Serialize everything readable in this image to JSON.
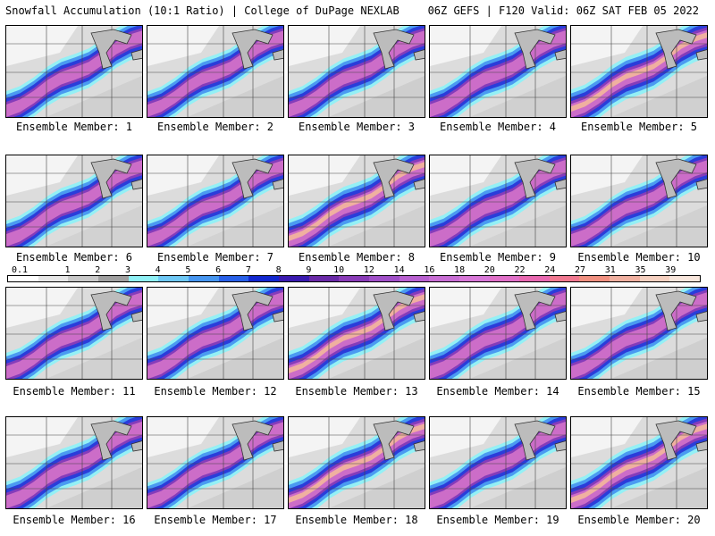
{
  "header": {
    "title_left": "Snowfall Accumulation (10:1 Ratio) | College of DuPage NEXLAB",
    "title_right": "06Z GEFS | F120 Valid: 06Z SAT FEB 05 2022"
  },
  "map_labels": [
    "Ensemble Member: 1",
    "Ensemble Member: 2",
    "Ensemble Member: 3",
    "Ensemble Member: 4",
    "Ensemble Member: 5",
    "Ensemble Member: 6",
    "Ensemble Member: 7",
    "Ensemble Member: 8",
    "Ensemble Member: 9",
    "Ensemble Member: 10",
    "Ensemble Member: 11",
    "Ensemble Member: 12",
    "Ensemble Member: 13",
    "Ensemble Member: 14",
    "Ensemble Member: 15",
    "Ensemble Member: 16",
    "Ensemble Member: 17",
    "Ensemble Member: 18",
    "Ensemble Member: 19",
    "Ensemble Member: 20"
  ],
  "colorbar": {
    "labels": [
      "0.1",
      "1",
      "2",
      "3",
      "4",
      "5",
      "6",
      "7",
      "8",
      "9",
      "10",
      "12",
      "14",
      "16",
      "18",
      "20",
      "22",
      "24",
      "27",
      "31",
      "35",
      "39"
    ],
    "colors": [
      "#ffffff",
      "#e6e6e6",
      "#c8c8c8",
      "#a0a0a0",
      "#8ff0f5",
      "#6ec8f5",
      "#4696f0",
      "#2860e8",
      "#1228d0",
      "#3a1ab0",
      "#6a2aa8",
      "#8a3cb8",
      "#a050c8",
      "#b860d0",
      "#c86ed4",
      "#d878d8",
      "#e070c8",
      "#e868b0",
      "#f07890",
      "#f09080",
      "#f0b0a0",
      "#f5d0c0",
      "#f8e6dc"
    ]
  },
  "members": [
    {
      "intensity": 0.75,
      "southern_grey": 0.4
    },
    {
      "intensity": 0.7,
      "southern_grey": 0.5
    },
    {
      "intensity": 0.75,
      "southern_grey": 0.6
    },
    {
      "intensity": 0.8,
      "southern_grey": 0.4
    },
    {
      "intensity": 0.95,
      "southern_grey": 0.4
    },
    {
      "intensity": 0.75,
      "southern_grey": 0.2
    },
    {
      "intensity": 0.7,
      "southern_grey": 0.2
    },
    {
      "intensity": 0.9,
      "southern_grey": 0.3
    },
    {
      "intensity": 0.85,
      "southern_grey": 0.2
    },
    {
      "intensity": 0.7,
      "southern_grey": 0.3
    },
    {
      "intensity": 0.75,
      "southern_grey": 0.3
    },
    {
      "intensity": 0.85,
      "southern_grey": 0.6
    },
    {
      "intensity": 0.95,
      "southern_grey": 0.5
    },
    {
      "intensity": 0.8,
      "southern_grey": 0.4
    },
    {
      "intensity": 0.75,
      "southern_grey": 0.5
    },
    {
      "intensity": 0.85,
      "southern_grey": 0.5
    },
    {
      "intensity": 0.7,
      "southern_grey": 0.5
    },
    {
      "intensity": 0.9,
      "southern_grey": 0.5
    },
    {
      "intensity": 0.8,
      "southern_grey": 0.5
    },
    {
      "intensity": 0.95,
      "southern_grey": 0.5
    }
  ]
}
